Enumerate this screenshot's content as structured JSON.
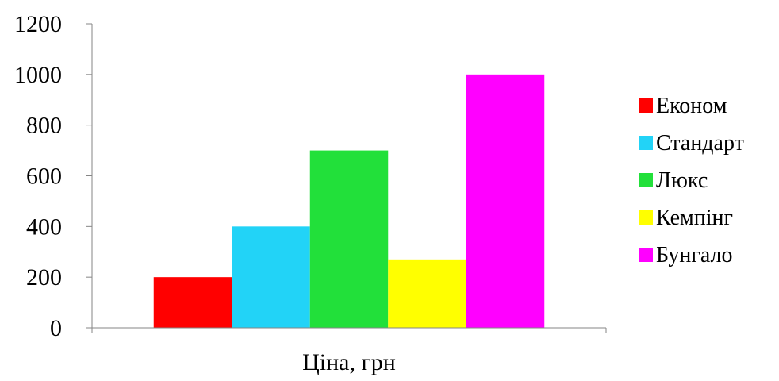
{
  "chart_data": {
    "type": "bar",
    "categories": [
      "Ціна, грн"
    ],
    "series": [
      {
        "name": "Економ",
        "values": [
          200
        ],
        "color": "#ff0000"
      },
      {
        "name": "Стандарт",
        "values": [
          400
        ],
        "color": "#22d3f7"
      },
      {
        "name": "Люкс",
        "values": [
          700
        ],
        "color": "#22e03a"
      },
      {
        "name": "Кемпінг",
        "values": [
          270
        ],
        "color": "#ffff00"
      },
      {
        "name": "Бунгало",
        "values": [
          1000
        ],
        "color": "#ff00ff"
      }
    ],
    "yticks": [
      "0",
      "200",
      "400",
      "600",
      "800",
      "1000",
      "1200"
    ],
    "ylim": [
      0,
      1200
    ],
    "grid": false,
    "legend": "right"
  }
}
